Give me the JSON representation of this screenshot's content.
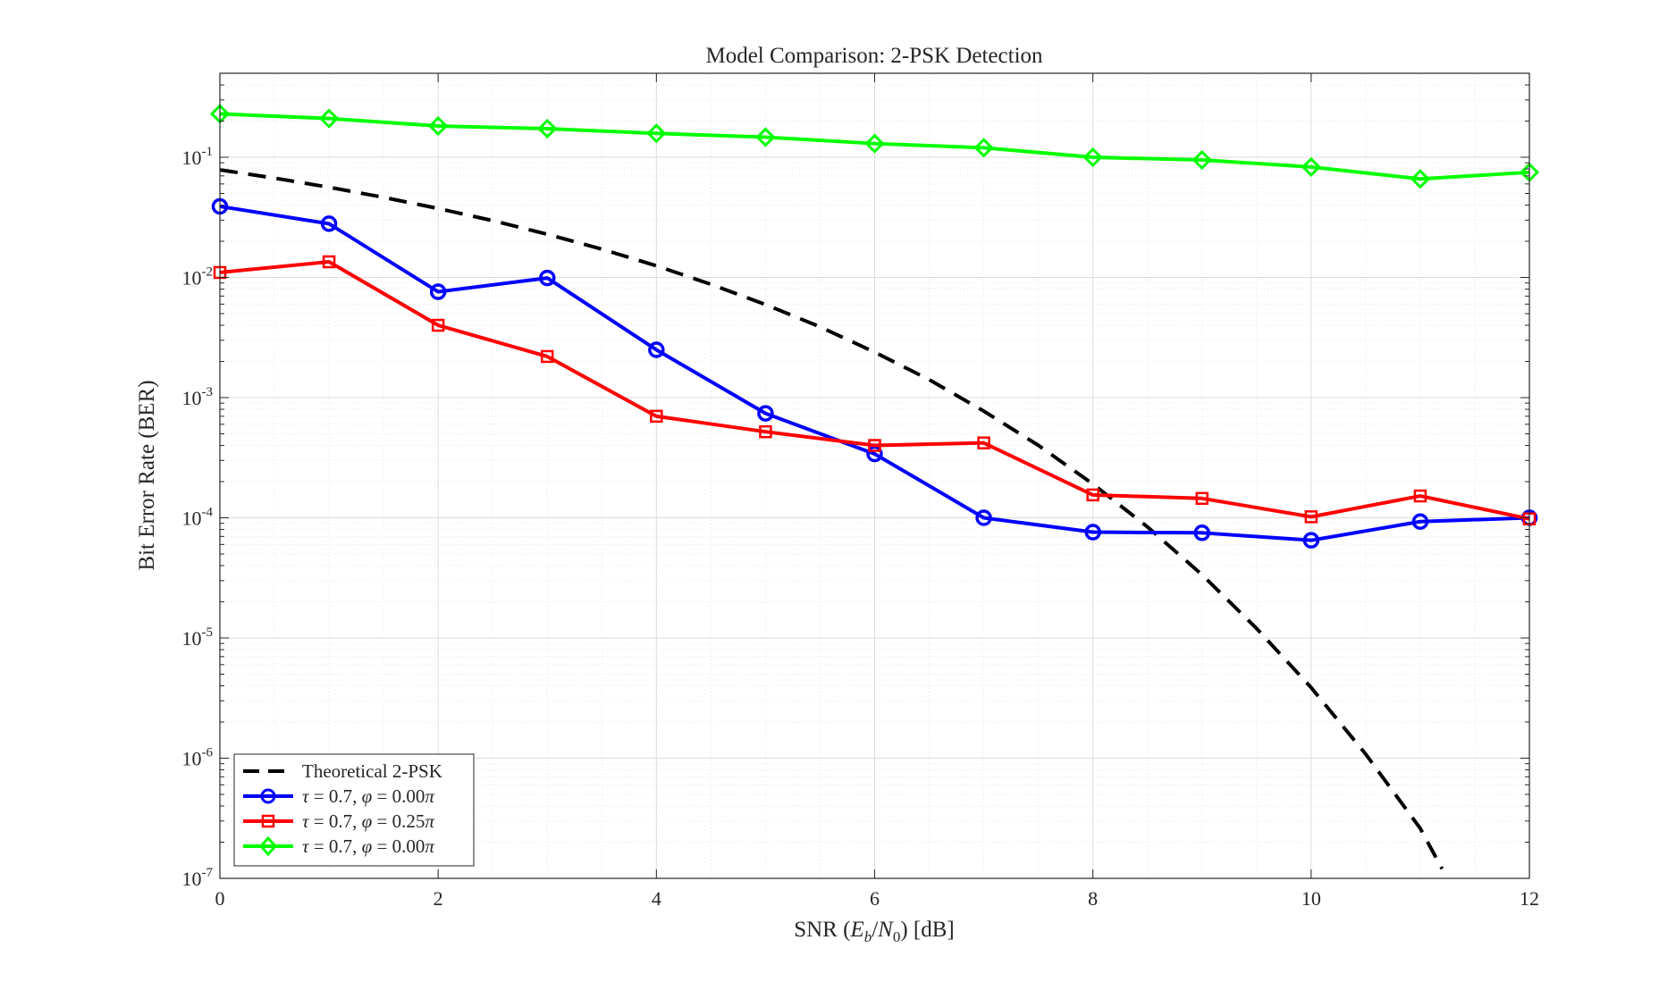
{
  "chart_data": {
    "type": "line",
    "title": "Model Comparison: 2-PSK Detection",
    "xlabel": {
      "prefix": "SNR (",
      "var_e": "E",
      "sub_b": "b",
      "slash": "/",
      "var_n": "N",
      "sub_0": "0",
      "suffix": ") [dB]"
    },
    "ylabel": "Bit Error Rate (BER)",
    "xlim": [
      0,
      12
    ],
    "ylim": [
      1e-07,
      0.5
    ],
    "yscale": "log",
    "grid": true,
    "minor_grid": true,
    "legend_location": "bottom-left",
    "x_ticks": [
      {
        "value": 0,
        "label": "0"
      },
      {
        "value": 2,
        "label": "2"
      },
      {
        "value": 4,
        "label": "4"
      },
      {
        "value": 6,
        "label": "6"
      },
      {
        "value": 8,
        "label": "8"
      },
      {
        "value": 10,
        "label": "10"
      },
      {
        "value": 12,
        "label": "12"
      }
    ],
    "y_ticks": [
      {
        "value": 0.1,
        "base": "10",
        "exp": "-1"
      },
      {
        "value": 0.01,
        "base": "10",
        "exp": "-2"
      },
      {
        "value": 0.001,
        "base": "10",
        "exp": "-3"
      },
      {
        "value": 0.0001,
        "base": "10",
        "exp": "-4"
      },
      {
        "value": 1e-05,
        "base": "10",
        "exp": "-5"
      },
      {
        "value": 1e-06,
        "base": "10",
        "exp": "-6"
      },
      {
        "value": 1e-07,
        "base": "10",
        "exp": "-7"
      }
    ],
    "series": [
      {
        "name": "Theoretical 2-PSK",
        "legend": {
          "plain": "Theoretical 2-PSK"
        },
        "color": "#000000",
        "dash": "dashed",
        "marker": "none",
        "x": [
          0,
          0.5,
          1,
          1.5,
          2,
          2.5,
          3,
          3.5,
          4,
          4.5,
          5,
          5.5,
          6,
          6.5,
          7,
          7.5,
          8,
          8.5,
          9,
          9.5,
          10,
          10.5,
          11,
          11.2
        ],
        "y": [
          0.0786,
          0.0671,
          0.0563,
          0.0464,
          0.0375,
          0.0297,
          0.0229,
          0.0172,
          0.0125,
          0.00877,
          0.00595,
          0.00388,
          0.00239,
          0.00141,
          0.000773,
          0.000401,
          0.000191,
          8.4e-05,
          3.36e-05,
          1.2e-05,
          3.87e-06,
          1.08e-06,
          2.6e-07,
          1.2e-07
        ]
      },
      {
        "name": "τ = 0.7, φ = 0.00π (series 1)",
        "legend": {
          "tau": "τ",
          "tau_val": " = 0.7, ",
          "phi": "φ",
          "phi_val": " = 0.00",
          "pi": "π"
        },
        "color": "#0000ff",
        "dash": "solid",
        "marker": "circle",
        "x": [
          0,
          1,
          2,
          3,
          4,
          5,
          6,
          7,
          8,
          9,
          10,
          11,
          12
        ],
        "y": [
          0.039,
          0.028,
          0.0076,
          0.0099,
          0.0025,
          0.00074,
          0.00034,
          0.0001,
          7.6e-05,
          7.5e-05,
          6.5e-05,
          9.3e-05,
          0.0001
        ]
      },
      {
        "name": "τ = 0.7, φ = 0.25π",
        "legend": {
          "tau": "τ",
          "tau_val": " = 0.7, ",
          "phi": "φ",
          "phi_val": " = 0.25",
          "pi": "π"
        },
        "color": "#ff0000",
        "dash": "solid",
        "marker": "square",
        "x": [
          0,
          1,
          2,
          3,
          4,
          5,
          6,
          7,
          8,
          9,
          10,
          11,
          12
        ],
        "y": [
          0.011,
          0.0135,
          0.004,
          0.0022,
          0.0007,
          0.00052,
          0.0004,
          0.00042,
          0.000155,
          0.000145,
          0.000102,
          0.000152,
          9.8e-05
        ]
      },
      {
        "name": "τ = 0.7, φ = 0.00π (series 2)",
        "legend": {
          "tau": "τ",
          "tau_val": " = 0.7, ",
          "phi": "φ",
          "phi_val": " = 0.00",
          "pi": "π"
        },
        "color": "#00ff00",
        "dash": "solid",
        "marker": "diamond",
        "x": [
          0,
          1,
          2,
          3,
          4,
          5,
          6,
          7,
          8,
          9,
          10,
          11,
          12
        ],
        "y": [
          0.23,
          0.21,
          0.182,
          0.173,
          0.158,
          0.147,
          0.13,
          0.12,
          0.1,
          0.095,
          0.083,
          0.066,
          0.075
        ]
      }
    ]
  }
}
